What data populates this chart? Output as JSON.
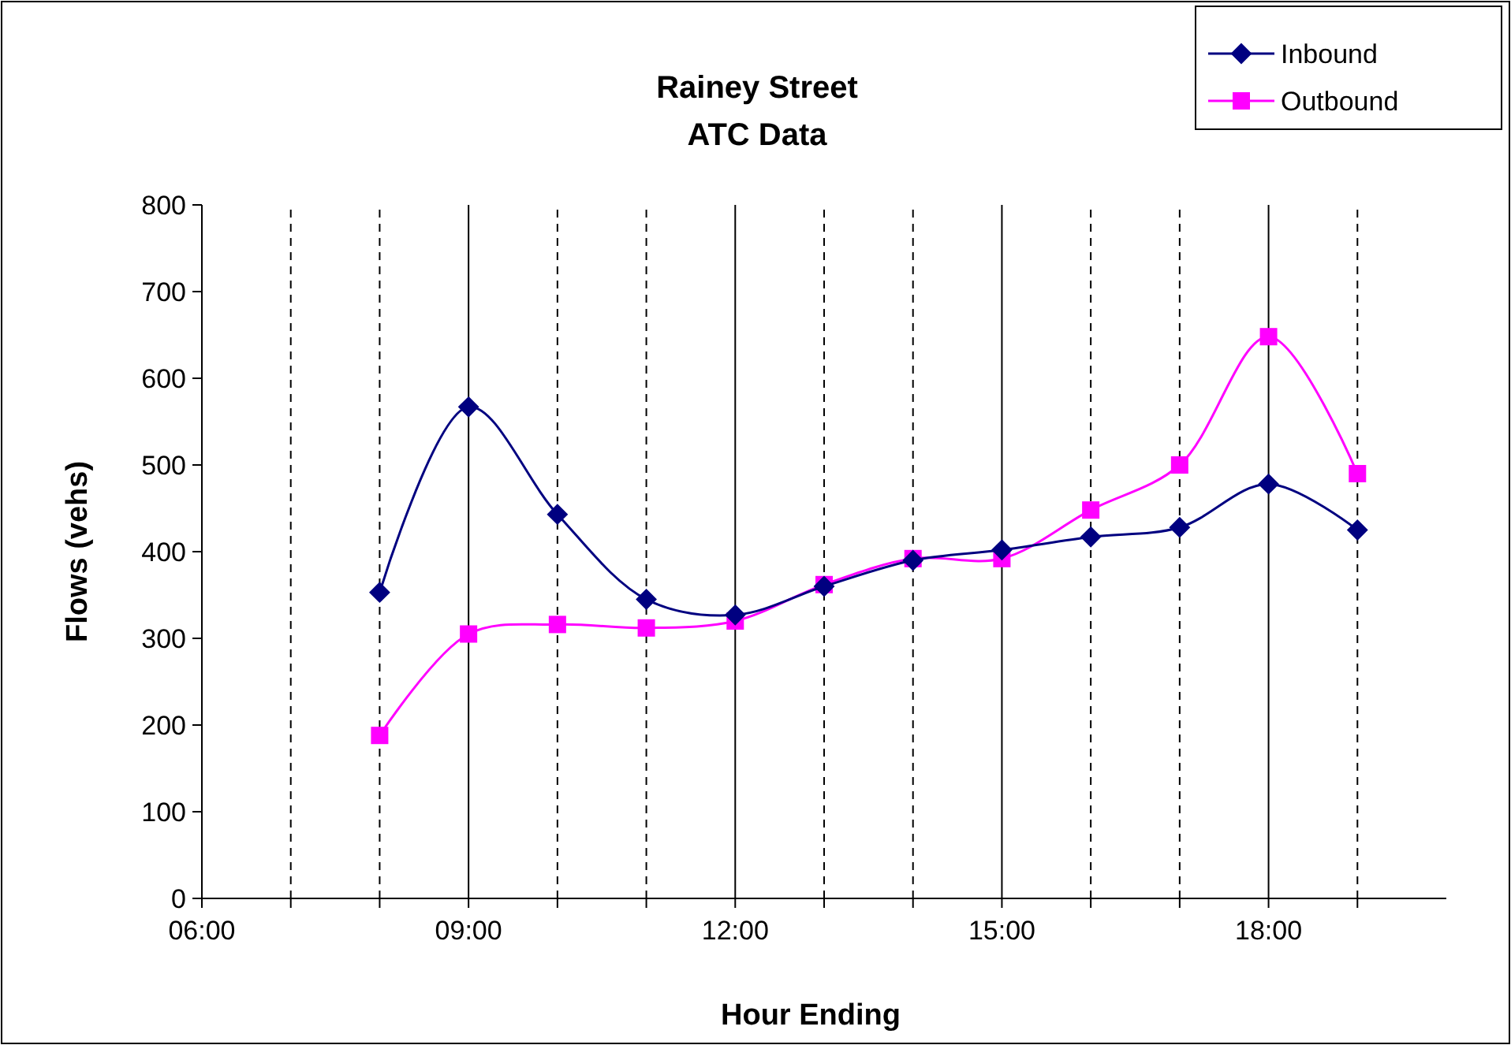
{
  "chart_data": {
    "type": "line",
    "title": "Rainey Street\nATC Data",
    "xlabel": "Hour Ending",
    "ylabel": "Flows (vehs)",
    "x": [
      8,
      9,
      10,
      11,
      12,
      13,
      14,
      15,
      16,
      17,
      18,
      19
    ],
    "series": [
      {
        "name": "Inbound",
        "color": "#000080",
        "marker": "diamond",
        "values": [
          353,
          567,
          443,
          345,
          327,
          360,
          390,
          402,
          417,
          428,
          478,
          425
        ]
      },
      {
        "name": "Outbound",
        "color": "#ff00ff",
        "marker": "square",
        "values": [
          188,
          305,
          316,
          312,
          320,
          362,
          392,
          392,
          448,
          500,
          648,
          490
        ]
      }
    ],
    "xlim": [
      6,
      20
    ],
    "xticks": [
      {
        "value": 6,
        "label": "06:00"
      },
      {
        "value": 7,
        "label": null
      },
      {
        "value": 8,
        "label": null
      },
      {
        "value": 9,
        "label": "09:00"
      },
      {
        "value": 10,
        "label": null
      },
      {
        "value": 11,
        "label": null
      },
      {
        "value": 12,
        "label": "12:00"
      },
      {
        "value": 13,
        "label": null
      },
      {
        "value": 14,
        "label": null
      },
      {
        "value": 15,
        "label": "15:00"
      },
      {
        "value": 16,
        "label": null
      },
      {
        "value": 17,
        "label": null
      },
      {
        "value": 18,
        "label": "18:00"
      },
      {
        "value": 19,
        "label": null
      }
    ],
    "ylim": [
      0,
      800
    ],
    "yticks": [
      0,
      100,
      200,
      300,
      400,
      500,
      600,
      700,
      800
    ],
    "grid": "x",
    "legend": "top right",
    "line_style": "solid"
  }
}
